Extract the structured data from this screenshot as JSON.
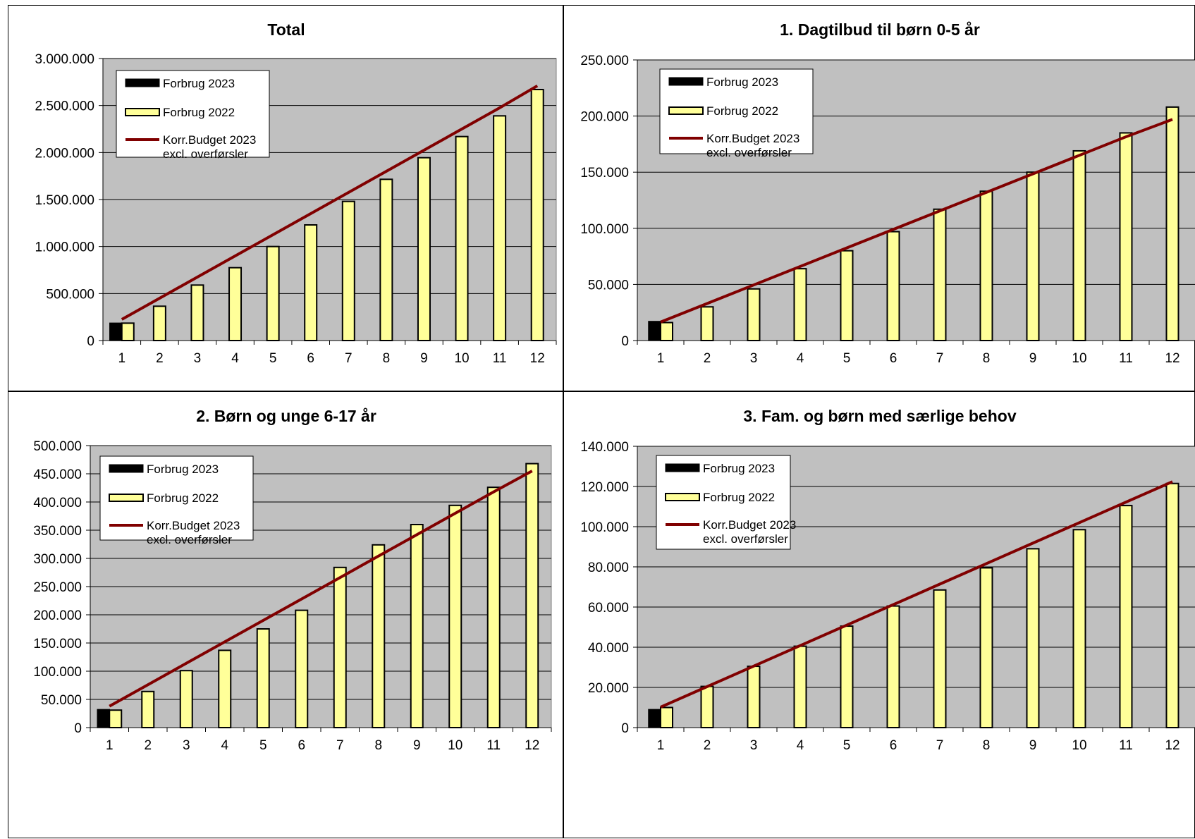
{
  "chart_data": [
    {
      "type": "bar",
      "title": "Total",
      "categories": [
        "1",
        "2",
        "3",
        "4",
        "5",
        "6",
        "7",
        "8",
        "9",
        "10",
        "11",
        "12"
      ],
      "ylim": [
        0,
        3000000
      ],
      "ytick_labels": [
        "0",
        "500.000",
        "1.000.000",
        "1.500.000",
        "2.000.000",
        "2.500.000",
        "3.000.000"
      ],
      "grid": true,
      "legend_position": "top-left",
      "series": [
        {
          "name": "Forbrug 2023",
          "kind": "bar",
          "color": "#000000",
          "values": [
            185000,
            null,
            null,
            null,
            null,
            null,
            null,
            null,
            null,
            null,
            null,
            null
          ]
        },
        {
          "name": "Forbrug 2022",
          "kind": "bar",
          "color": "#FFFF99",
          "values": [
            185000,
            365000,
            590000,
            775000,
            1000000,
            1230000,
            1480000,
            1715000,
            1945000,
            2170000,
            2390000,
            2670000
          ]
        },
        {
          "name": "Korr.Budget 2023 excl. overførsler",
          "kind": "line",
          "color": "#800000",
          "values": [
            225000,
            450000,
            675000,
            900000,
            1125000,
            1350000,
            1575000,
            1800000,
            2025000,
            2250000,
            2475000,
            2710000
          ]
        }
      ]
    },
    {
      "type": "bar",
      "title": "1. Dagtilbud til børn 0-5 år",
      "categories": [
        "1",
        "2",
        "3",
        "4",
        "5",
        "6",
        "7",
        "8",
        "9",
        "10",
        "11",
        "12"
      ],
      "ylim": [
        0,
        250000
      ],
      "ytick_labels": [
        "0",
        "50.000",
        "100.000",
        "150.000",
        "200.000",
        "250.000"
      ],
      "grid": true,
      "legend_position": "top-left",
      "series": [
        {
          "name": "Forbrug 2023",
          "kind": "bar",
          "color": "#000000",
          "values": [
            17000,
            null,
            null,
            null,
            null,
            null,
            null,
            null,
            null,
            null,
            null,
            null
          ]
        },
        {
          "name": "Forbrug 2022",
          "kind": "bar",
          "color": "#FFFF99",
          "values": [
            16000,
            30000,
            46000,
            64000,
            80000,
            97000,
            117000,
            133000,
            150000,
            169000,
            185000,
            208000
          ]
        },
        {
          "name": "Korr.Budget 2023 excl. overførsler",
          "kind": "line",
          "color": "#800000",
          "values": [
            16500,
            33000,
            49500,
            66000,
            82500,
            99000,
            115500,
            132000,
            148500,
            165000,
            181500,
            197000
          ]
        }
      ]
    },
    {
      "type": "bar",
      "title": "2. Børn og unge 6-17 år",
      "categories": [
        "1",
        "2",
        "3",
        "4",
        "5",
        "6",
        "7",
        "8",
        "9",
        "10",
        "11",
        "12"
      ],
      "ylim": [
        0,
        500000
      ],
      "ytick_labels": [
        "0",
        "50.000",
        "100.000",
        "150.000",
        "200.000",
        "250.000",
        "300.000",
        "350.000",
        "400.000",
        "450.000",
        "500.000"
      ],
      "grid": true,
      "legend_position": "top-left",
      "series": [
        {
          "name": "Forbrug 2023",
          "kind": "bar",
          "color": "#000000",
          "values": [
            32000,
            null,
            null,
            null,
            null,
            null,
            null,
            null,
            null,
            null,
            null,
            null
          ]
        },
        {
          "name": "Forbrug 2022",
          "kind": "bar",
          "color": "#FFFF99",
          "values": [
            31000,
            64000,
            101000,
            137000,
            175000,
            208000,
            284000,
            324000,
            360000,
            394000,
            426000,
            468000
          ]
        },
        {
          "name": "Korr.Budget 2023 excl. overførsler",
          "kind": "line",
          "color": "#800000",
          "values": [
            38000,
            76000,
            114000,
            152000,
            190000,
            228000,
            266000,
            304000,
            342000,
            380000,
            418000,
            455000
          ]
        }
      ]
    },
    {
      "type": "bar",
      "title": "3. Fam. og børn med særlige behov",
      "categories": [
        "1",
        "2",
        "3",
        "4",
        "5",
        "6",
        "7",
        "8",
        "9",
        "10",
        "11",
        "12"
      ],
      "ylim": [
        0,
        140000
      ],
      "ytick_labels": [
        "0",
        "20.000",
        "40.000",
        "60.000",
        "80.000",
        "100.000",
        "120.000",
        "140.000"
      ],
      "grid": true,
      "legend_position": "top-left",
      "series": [
        {
          "name": "Forbrug 2023",
          "kind": "bar",
          "color": "#000000",
          "values": [
            9000,
            null,
            null,
            null,
            null,
            null,
            null,
            null,
            null,
            null,
            null,
            null
          ]
        },
        {
          "name": "Forbrug 2022",
          "kind": "bar",
          "color": "#FFFF99",
          "values": [
            10000,
            20500,
            30500,
            40500,
            50500,
            60500,
            68500,
            79500,
            89000,
            98500,
            110500,
            121500
          ]
        },
        {
          "name": "Korr.Budget 2023 excl. overførsler",
          "kind": "line",
          "color": "#800000",
          "values": [
            10200,
            20400,
            30600,
            40800,
            51000,
            61200,
            71400,
            81600,
            91800,
            102000,
            112200,
            122400
          ]
        }
      ]
    }
  ],
  "legend": {
    "forbrug_2023": "Forbrug 2023",
    "forbrug_2022": "Forbrug 2022",
    "budget_line1": "Korr.Budget 2023",
    "budget_line2": "excl. overførsler"
  },
  "colors": {
    "plot_background": "#C0C0C0",
    "bar_2023": "#000000",
    "bar_2022": "#FFFF99",
    "budget_line": "#800000"
  }
}
